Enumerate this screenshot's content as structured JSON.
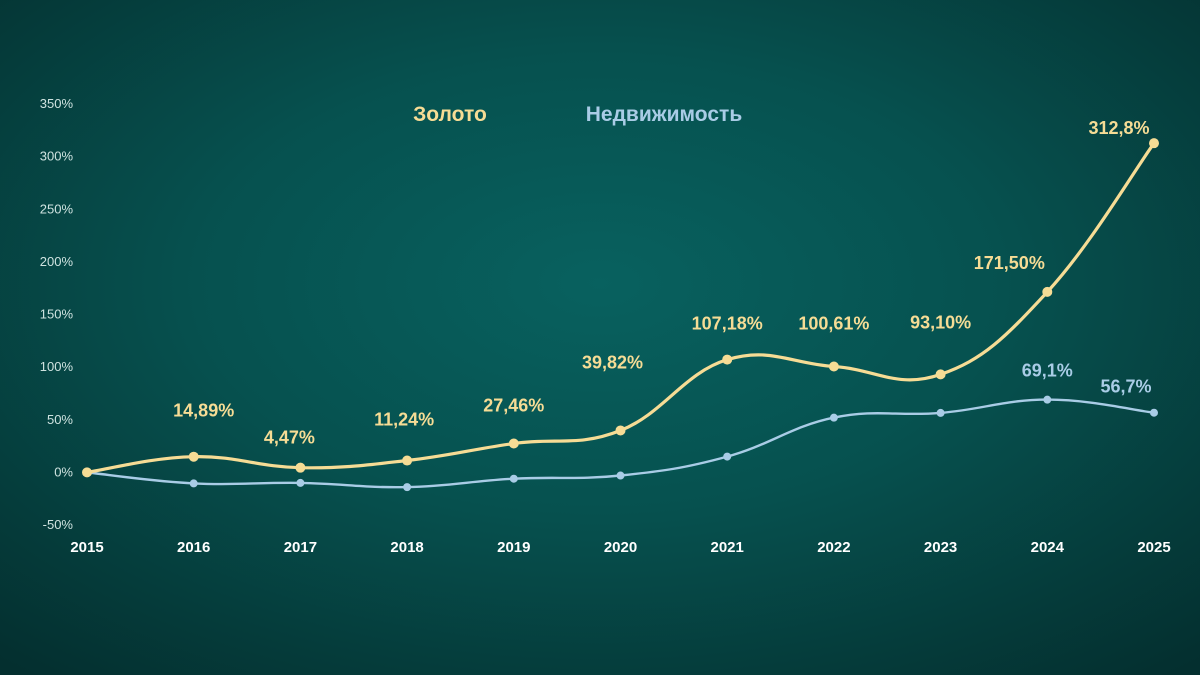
{
  "chart_data": {
    "type": "line",
    "x": [
      "2015",
      "2016",
      "2017",
      "2018",
      "2019",
      "2020",
      "2021",
      "2022",
      "2023",
      "2024",
      "2025"
    ],
    "ylim": [
      -50,
      350
    ],
    "yticks": [
      "-50%",
      "0%",
      "50%",
      "100%",
      "150%",
      "200%",
      "250%",
      "300%",
      "350%"
    ],
    "grid": false,
    "legend_position": "top-center",
    "series": [
      {
        "name": "Золото",
        "color": "#f6dc95",
        "values": [
          0,
          14.89,
          4.47,
          11.24,
          27.46,
          39.82,
          107.18,
          100.61,
          93.1,
          171.5,
          312.8
        ],
        "labels": [
          "",
          "14,89%",
          "4,47%",
          "11,24%",
          "27,46%",
          "39,82%",
          "107,18%",
          "100,61%",
          "93,10%",
          "171,50%",
          "312,8%"
        ]
      },
      {
        "name": "Недвижимость",
        "color": "#a9cce6",
        "values": [
          0,
          -10.5,
          -10,
          -14,
          -6,
          -3,
          15,
          52,
          56.5,
          69.1,
          56.7
        ],
        "labels": [
          "",
          "",
          "",
          "",
          "",
          "",
          "",
          "",
          "",
          "69,1%",
          "56,7%"
        ]
      }
    ]
  }
}
